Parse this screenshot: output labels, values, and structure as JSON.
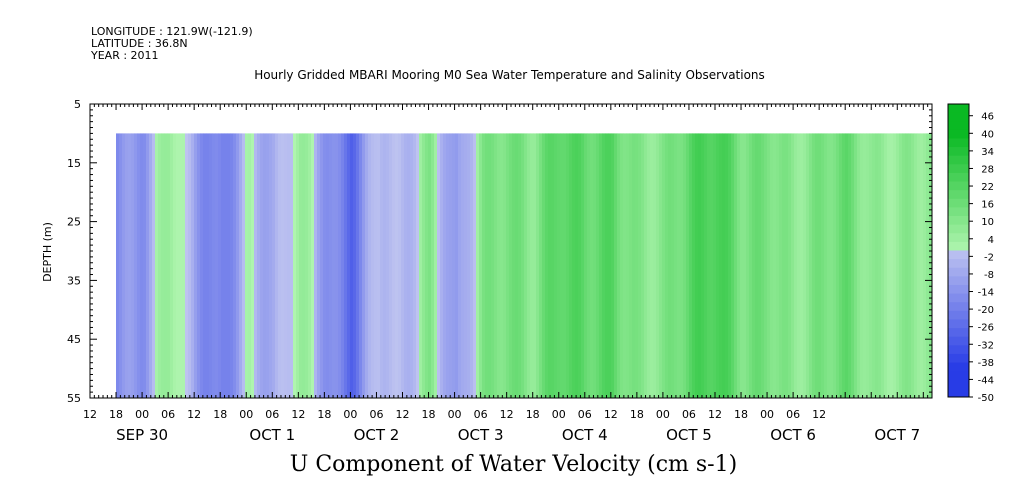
{
  "meta": {
    "longitude": "LONGITUDE : 121.9W(-121.9)",
    "latitude": "LATITUDE : 36.8N",
    "year": "YEAR : 2011"
  },
  "chart_data": {
    "type": "heatmap",
    "title": "Hourly Gridded MBARI Mooring M0 Sea Water Temperature and Salinity Observations",
    "xlabel": "U Component of Water Velocity (cm s-1)",
    "ylabel": "DEPTH (m)",
    "x_hour_ticks": [
      "12",
      "18",
      "00",
      "06",
      "12",
      "18",
      "00",
      "06",
      "12",
      "18",
      "00",
      "06",
      "12",
      "18",
      "00",
      "06",
      "12",
      "18",
      "00",
      "06",
      "12",
      "18",
      "00",
      "06",
      "12",
      "18",
      "00",
      "06",
      "12"
    ],
    "x_day_labels": [
      "SEP 30",
      "OCT 1",
      "OCT 2",
      "OCT 3",
      "OCT 4",
      "OCT 5",
      "OCT 6",
      "OCT 7"
    ],
    "x_range": [
      "2011-09-29 12:00",
      "2011-10-07 14:00"
    ],
    "data_start": "2011-09-29 18:00",
    "y_ticks": [
      5,
      15,
      25,
      35,
      45,
      55
    ],
    "ylim": [
      55,
      5
    ],
    "data_depth_range": [
      10,
      55
    ],
    "colorbar": {
      "levels": [
        46,
        40,
        34,
        28,
        22,
        16,
        10,
        4,
        -2,
        -8,
        -14,
        -20,
        -26,
        -32,
        -38,
        -44,
        -50
      ],
      "range": [
        -50,
        50
      ]
    },
    "u_velocity_profile": {
      "time_hours": [
        0,
        6,
        12,
        18,
        24,
        30,
        36,
        42,
        48,
        54,
        60,
        66,
        72,
        78,
        84,
        90,
        96,
        102,
        108,
        114,
        120,
        126,
        132,
        138,
        144,
        150,
        156,
        162,
        168,
        174,
        180
      ],
      "values": [
        -12,
        -14,
        6,
        -12,
        -20,
        2,
        -10,
        4,
        -14,
        -24,
        4,
        -6,
        6,
        -18,
        12,
        18,
        10,
        20,
        16,
        22,
        12,
        10,
        18,
        24,
        14,
        18,
        8,
        10,
        14,
        6,
        10
      ]
    }
  }
}
